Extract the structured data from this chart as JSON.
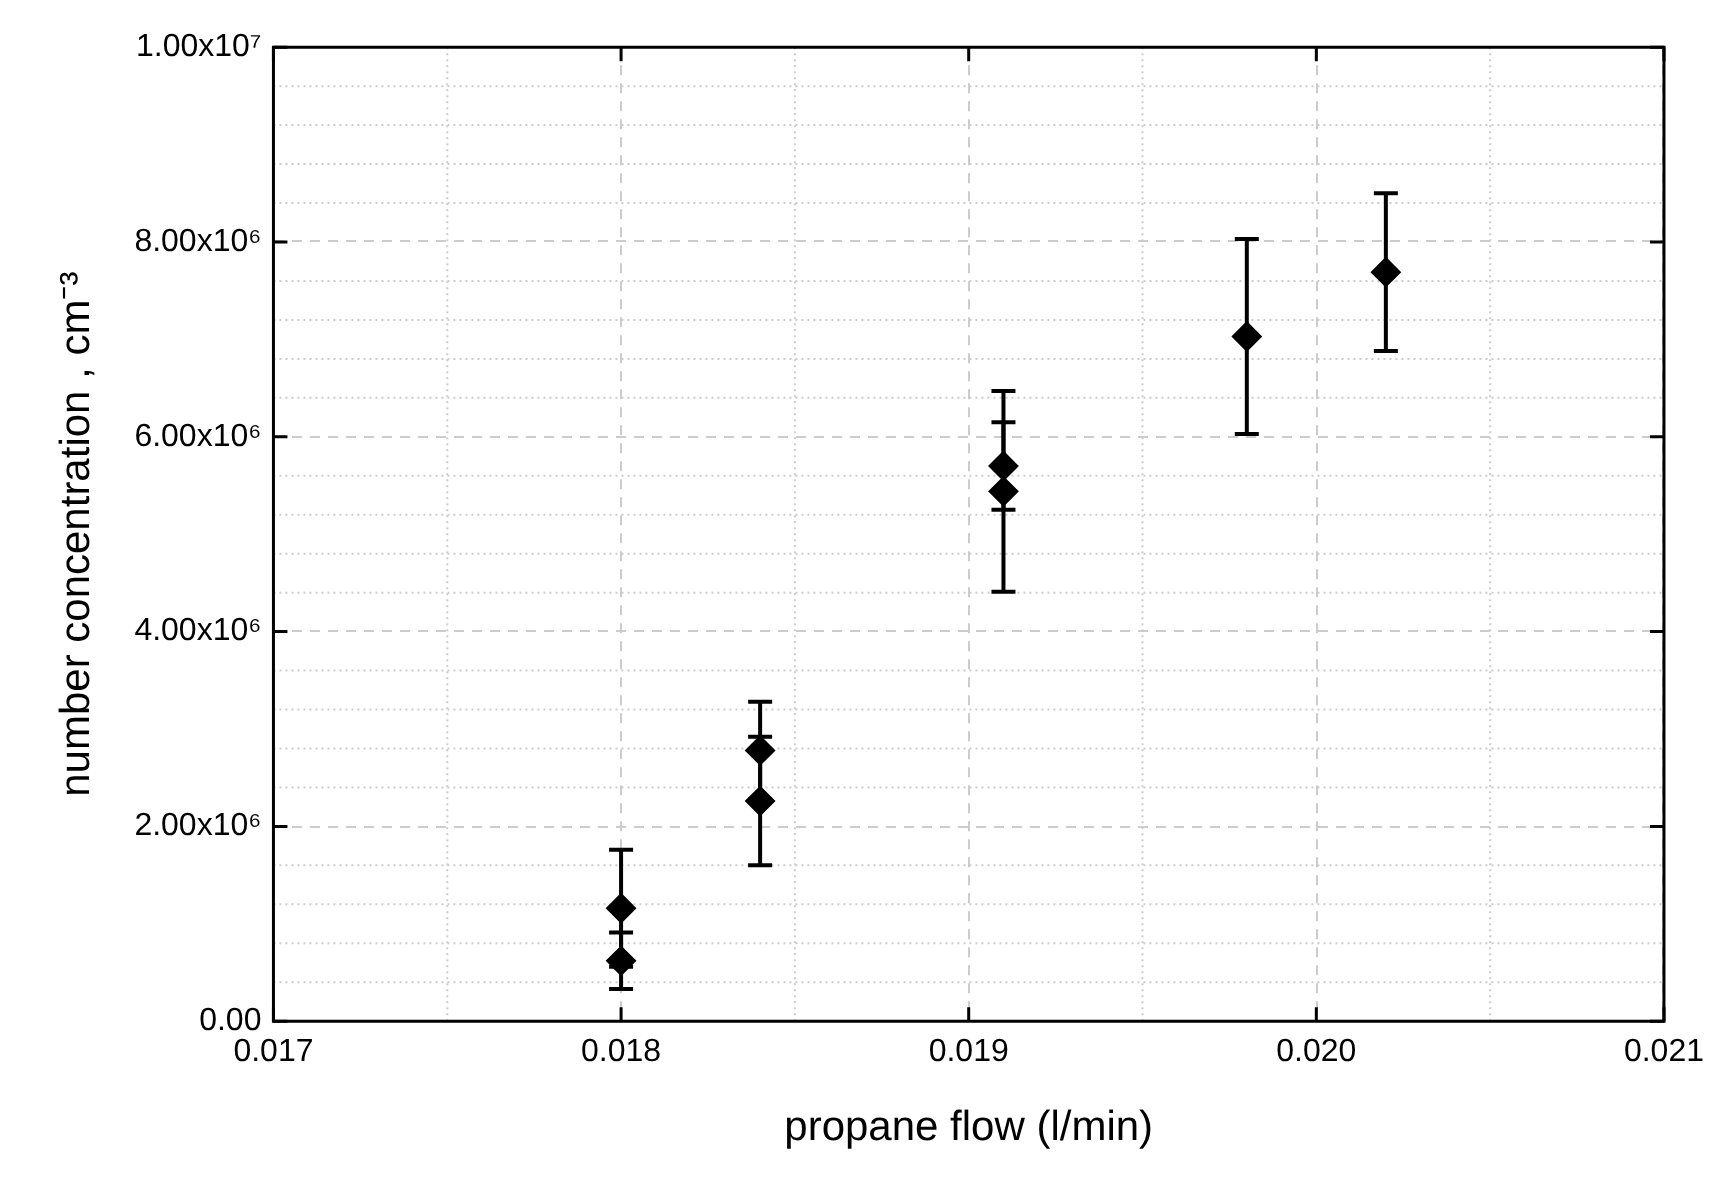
{
  "chart_data": {
    "type": "scatter",
    "xlabel": "propane flow (l/min)",
    "ylabel": "number concentration , cm⁻³",
    "x": [
      0.018,
      0.018,
      0.0184,
      0.0184,
      0.0191,
      0.0191,
      0.0198,
      0.0202
    ],
    "series": [
      {
        "color": "#000000",
        "values": [
          620000.0,
          1160000.0,
          2260000.0,
          2780000.0,
          5440000.0,
          5700000.0,
          7030000.0,
          7690000.0
        ],
        "errors": [
          290000.0,
          600000.0,
          660000.0,
          500000.0,
          1030000.0,
          450000.0,
          1000000.0,
          810000.0
        ]
      }
    ],
    "xlim": [
      0.017,
      0.021
    ],
    "xticks": [
      {
        "value": 0.017,
        "label": "0.017"
      },
      {
        "value": 0.018,
        "label": "0.018"
      },
      {
        "value": 0.019,
        "label": "0.019"
      },
      {
        "value": 0.02,
        "label": "0.020"
      },
      {
        "value": 0.021,
        "label": "0.021"
      }
    ],
    "ylim": [
      0,
      10000000.0
    ],
    "yticks": [
      {
        "value": 0,
        "label": "0.00"
      },
      {
        "value": 2000000.0,
        "label": "2.00x10⁶"
      },
      {
        "value": 4000000.0,
        "label": "4.00x10⁶"
      },
      {
        "value": 6000000.0,
        "label": "6.00x10⁶"
      },
      {
        "value": 8000000.0,
        "label": "8.00x10⁶"
      },
      {
        "value": 10000000.0,
        "label": "1.00x10⁷"
      }
    ],
    "grid": true,
    "legend": false,
    "marker": "diamond"
  }
}
